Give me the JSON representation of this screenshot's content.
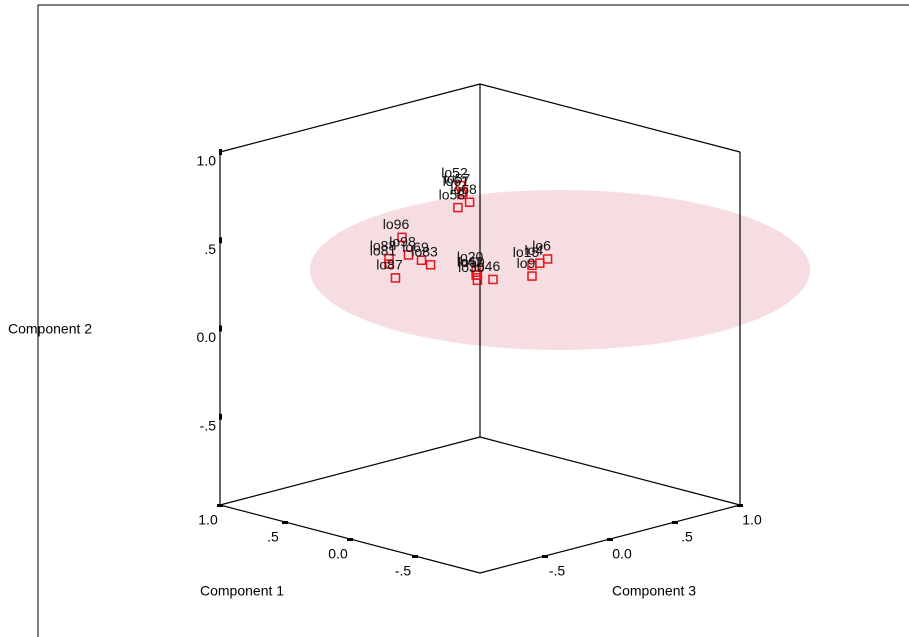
{
  "chart_data": {
    "type": "scatter3d",
    "x_label": "Component 1",
    "y_label": "Component 2",
    "z_label": "Component 3",
    "xlim": [
      -1,
      1
    ],
    "ylim": [
      -1,
      1
    ],
    "zlim": [
      -1,
      1
    ],
    "xticks": [
      {
        "value": 1,
        "label": "1.0"
      },
      {
        "value": 0.5,
        "label": ".5"
      },
      {
        "value": 0,
        "label": "0.0"
      },
      {
        "value": -0.5,
        "label": "-.5"
      }
    ],
    "yticks": [
      {
        "value": 1,
        "label": "1.0"
      },
      {
        "value": 0.5,
        "label": ".5"
      },
      {
        "value": 0,
        "label": "0.0"
      },
      {
        "value": -0.5,
        "label": "-.5"
      }
    ],
    "zticks": [
      {
        "value": -0.5,
        "label": "-.5"
      },
      {
        "value": 0,
        "label": "0.0"
      },
      {
        "value": 0.5,
        "label": ".5"
      },
      {
        "value": 1,
        "label": "1.0"
      }
    ],
    "color": "#e8141c",
    "labels": [
      "lo52",
      "lo57",
      "lo61",
      "lo68",
      "lo58",
      "lo96",
      "lo88",
      "lo98",
      "lo69",
      "lo81",
      "lo87",
      "lo83",
      "lo20",
      "lo42",
      "lo46",
      "lo50",
      "lo35",
      "lo4",
      "lo6",
      "lo15",
      "lo9"
    ],
    "x": [
      0.1,
      0.05,
      0.12,
      0.08,
      0.15,
      0.55,
      0.6,
      0.5,
      0.45,
      0.65,
      0.55,
      0.4,
      0.15,
      0.18,
      0.1,
      0.12,
      0.2,
      -0.1,
      -0.12,
      -0.05,
      0.0
    ],
    "y": [
      0.8,
      0.78,
      0.74,
      0.7,
      0.66,
      0.42,
      0.3,
      0.33,
      0.3,
      0.25,
      0.2,
      0.28,
      0.28,
      0.24,
      0.22,
      0.26,
      0.2,
      0.32,
      0.34,
      0.3,
      0.22
    ],
    "z": [
      -0.05,
      -0.08,
      -0.02,
      0.0,
      -0.02,
      -0.05,
      -0.1,
      -0.05,
      0.0,
      -0.05,
      -0.1,
      0.02,
      0.12,
      0.15,
      0.2,
      0.1,
      0.18,
      0.36,
      0.4,
      0.35,
      0.4
    ]
  }
}
